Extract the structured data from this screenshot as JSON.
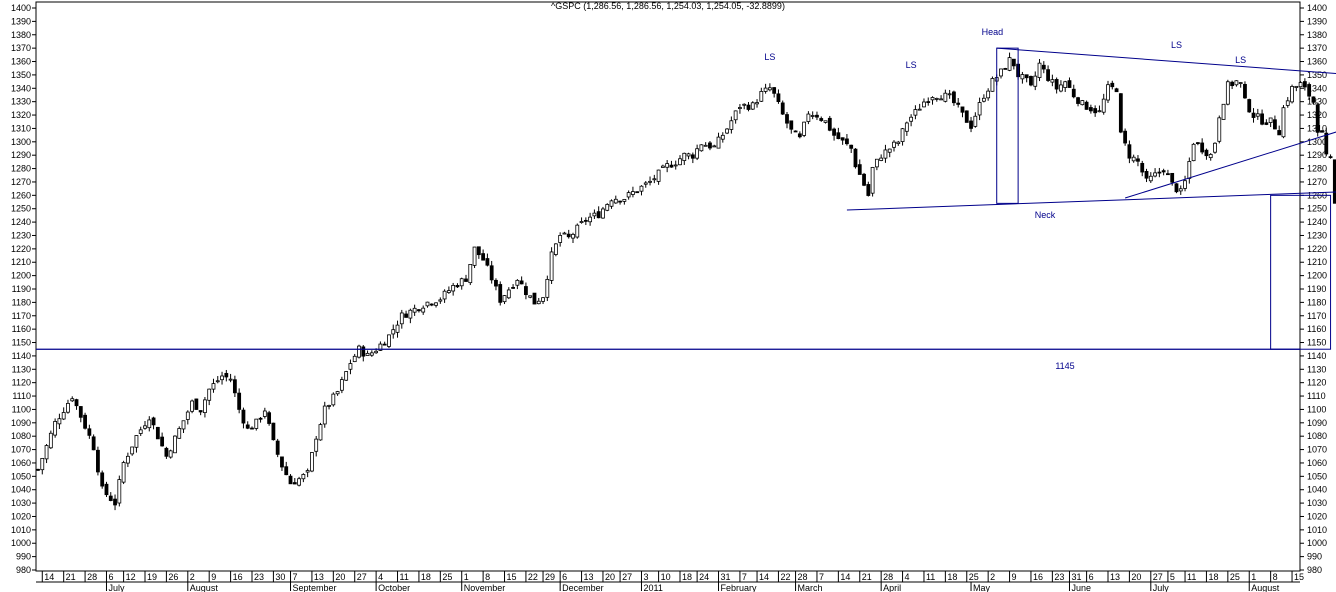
{
  "header": {
    "title": "^GSPC (1,286.56, 1,286.56, 1,254.03, 1,254.05, -32.8899)"
  },
  "chart_data": {
    "type": "candlestick",
    "title": "^GSPC (1,286.56, 1,286.56, 1,254.03, 1,254.05, -32.8899)",
    "ylim": [
      980,
      1400
    ],
    "y_ticks": [
      980,
      990,
      1000,
      1010,
      1020,
      1030,
      1040,
      1050,
      1060,
      1070,
      1080,
      1090,
      1100,
      1110,
      1120,
      1130,
      1140,
      1150,
      1160,
      1170,
      1180,
      1190,
      1200,
      1210,
      1220,
      1230,
      1240,
      1250,
      1260,
      1270,
      1280,
      1290,
      1300,
      1310,
      1320,
      1330,
      1340,
      1350,
      1360,
      1370,
      1380,
      1390,
      1400
    ],
    "x_day_ticks": [
      {
        "i": 1,
        "t": "14"
      },
      {
        "i": 6,
        "t": "21"
      },
      {
        "i": 11,
        "t": "28"
      },
      {
        "i": 16,
        "t": "6"
      },
      {
        "i": 20,
        "t": "12"
      },
      {
        "i": 25,
        "t": "19"
      },
      {
        "i": 30,
        "t": "26"
      },
      {
        "i": 35,
        "t": "2"
      },
      {
        "i": 40,
        "t": "9"
      },
      {
        "i": 45,
        "t": "16"
      },
      {
        "i": 50,
        "t": "23"
      },
      {
        "i": 55,
        "t": "30"
      },
      {
        "i": 59,
        "t": "7"
      },
      {
        "i": 64,
        "t": "13"
      },
      {
        "i": 69,
        "t": "20"
      },
      {
        "i": 74,
        "t": "27"
      },
      {
        "i": 79,
        "t": "4"
      },
      {
        "i": 84,
        "t": "11"
      },
      {
        "i": 89,
        "t": "18"
      },
      {
        "i": 94,
        "t": "25"
      },
      {
        "i": 99,
        "t": "1"
      },
      {
        "i": 104,
        "t": "8"
      },
      {
        "i": 109,
        "t": "15"
      },
      {
        "i": 114,
        "t": "22"
      },
      {
        "i": 118,
        "t": "29"
      },
      {
        "i": 122,
        "t": "6"
      },
      {
        "i": 127,
        "t": "13"
      },
      {
        "i": 132,
        "t": "20"
      },
      {
        "i": 136,
        "t": "27"
      },
      {
        "i": 141,
        "t": "3"
      },
      {
        "i": 145,
        "t": "10"
      },
      {
        "i": 150,
        "t": "18"
      },
      {
        "i": 154,
        "t": "24"
      },
      {
        "i": 159,
        "t": "31"
      },
      {
        "i": 164,
        "t": "7"
      },
      {
        "i": 168,
        "t": "14"
      },
      {
        "i": 173,
        "t": "22"
      },
      {
        "i": 177,
        "t": "28"
      },
      {
        "i": 182,
        "t": "7"
      },
      {
        "i": 187,
        "t": "14"
      },
      {
        "i": 192,
        "t": "21"
      },
      {
        "i": 197,
        "t": "28"
      },
      {
        "i": 202,
        "t": "4"
      },
      {
        "i": 207,
        "t": "11"
      },
      {
        "i": 212,
        "t": "18"
      },
      {
        "i": 217,
        "t": "25"
      },
      {
        "i": 222,
        "t": "2"
      },
      {
        "i": 227,
        "t": "9"
      },
      {
        "i": 232,
        "t": "16"
      },
      {
        "i": 237,
        "t": "23"
      },
      {
        "i": 241,
        "t": "31"
      },
      {
        "i": 245,
        "t": "6"
      },
      {
        "i": 250,
        "t": "13"
      },
      {
        "i": 255,
        "t": "20"
      },
      {
        "i": 260,
        "t": "27"
      },
      {
        "i": 264,
        "t": "5"
      },
      {
        "i": 268,
        "t": "11"
      },
      {
        "i": 273,
        "t": "18"
      },
      {
        "i": 278,
        "t": "25"
      },
      {
        "i": 283,
        "t": "1"
      },
      {
        "i": 288,
        "t": "8"
      },
      {
        "i": 293,
        "t": "15"
      }
    ],
    "x_month_labels": [
      {
        "i": 16,
        "t": "July"
      },
      {
        "i": 35,
        "t": "August"
      },
      {
        "i": 59,
        "t": "September"
      },
      {
        "i": 79,
        "t": "October"
      },
      {
        "i": 99,
        "t": "November"
      },
      {
        "i": 122,
        "t": "December"
      },
      {
        "i": 141,
        "t": "2011"
      },
      {
        "i": 159,
        "t": "February"
      },
      {
        "i": 177,
        "t": "March"
      },
      {
        "i": 197,
        "t": "April"
      },
      {
        "i": 218,
        "t": "May"
      },
      {
        "i": 241,
        "t": "June"
      },
      {
        "i": 260,
        "t": "July"
      },
      {
        "i": 283,
        "t": "August"
      }
    ],
    "close_path": [
      [
        0,
        1055
      ],
      [
        4,
        1090
      ],
      [
        8,
        1110
      ],
      [
        10,
        1095
      ],
      [
        12,
        1080
      ],
      [
        13,
        1072
      ],
      [
        15,
        1040
      ],
      [
        18,
        1030
      ],
      [
        20,
        1060
      ],
      [
        23,
        1080
      ],
      [
        26,
        1095
      ],
      [
        28,
        1080
      ],
      [
        30,
        1065
      ],
      [
        33,
        1085
      ],
      [
        36,
        1105
      ],
      [
        38,
        1100
      ],
      [
        40,
        1115
      ],
      [
        43,
        1125
      ],
      [
        45,
        1123
      ],
      [
        47,
        1100
      ],
      [
        49,
        1085
      ],
      [
        51,
        1090
      ],
      [
        53,
        1100
      ],
      [
        55,
        1075
      ],
      [
        57,
        1058
      ],
      [
        59,
        1045
      ],
      [
        61,
        1048
      ],
      [
        63,
        1052
      ],
      [
        65,
        1080
      ],
      [
        67,
        1100
      ],
      [
        70,
        1113
      ],
      [
        73,
        1135
      ],
      [
        75,
        1145
      ],
      [
        77,
        1140
      ],
      [
        79,
        1145
      ],
      [
        82,
        1155
      ],
      [
        85,
        1170
      ],
      [
        88,
        1175
      ],
      [
        91,
        1180
      ],
      [
        94,
        1183
      ],
      [
        97,
        1192
      ],
      [
        100,
        1198
      ],
      [
        102,
        1220
      ],
      [
        104,
        1212
      ],
      [
        106,
        1198
      ],
      [
        108,
        1182
      ],
      [
        110,
        1190
      ],
      [
        112,
        1198
      ],
      [
        114,
        1188
      ],
      [
        116,
        1180
      ],
      [
        118,
        1185
      ],
      [
        120,
        1215
      ],
      [
        122,
        1230
      ],
      [
        124,
        1228
      ],
      [
        126,
        1235
      ],
      [
        128,
        1242
      ],
      [
        131,
        1246
      ],
      [
        134,
        1258
      ],
      [
        137,
        1258
      ],
      [
        140,
        1264
      ],
      [
        143,
        1270
      ],
      [
        145,
        1276
      ],
      [
        147,
        1282
      ],
      [
        149,
        1285
      ],
      [
        151,
        1290
      ],
      [
        153,
        1290
      ],
      [
        155,
        1299
      ],
      [
        158,
        1296
      ],
      [
        161,
        1310
      ],
      [
        164,
        1327
      ],
      [
        167,
        1327
      ],
      [
        169,
        1336
      ],
      [
        171,
        1340
      ],
      [
        172,
        1335
      ],
      [
        174,
        1320
      ],
      [
        176,
        1308
      ],
      [
        178,
        1302
      ],
      [
        180,
        1322
      ],
      [
        182,
        1320
      ],
      [
        184,
        1315
      ],
      [
        186,
        1305
      ],
      [
        188,
        1300
      ],
      [
        190,
        1295
      ],
      [
        191,
        1283
      ],
      [
        193,
        1268
      ],
      [
        194,
        1260
      ],
      [
        195,
        1280
      ],
      [
        197,
        1290
      ],
      [
        199,
        1295
      ],
      [
        201,
        1300
      ],
      [
        203,
        1315
      ],
      [
        205,
        1322
      ],
      [
        207,
        1330
      ],
      [
        209,
        1335
      ],
      [
        211,
        1335
      ],
      [
        213,
        1333
      ],
      [
        215,
        1325
      ],
      [
        216,
        1320
      ],
      [
        218,
        1312
      ],
      [
        219,
        1320
      ],
      [
        221,
        1335
      ],
      [
        223,
        1345
      ],
      [
        225,
        1352
      ],
      [
        227,
        1361
      ],
      [
        228,
        1358
      ],
      [
        229,
        1350
      ],
      [
        231,
        1345
      ],
      [
        232,
        1340
      ],
      [
        234,
        1358
      ],
      [
        236,
        1348
      ],
      [
        238,
        1340
      ],
      [
        240,
        1345
      ],
      [
        242,
        1335
      ],
      [
        244,
        1328
      ],
      [
        246,
        1325
      ],
      [
        248,
        1322
      ],
      [
        250,
        1340
      ],
      [
        252,
        1340
      ],
      [
        253,
        1305
      ],
      [
        255,
        1290
      ],
      [
        257,
        1285
      ],
      [
        259,
        1270
      ],
      [
        261,
        1275
      ],
      [
        263,
        1280
      ],
      [
        265,
        1268
      ],
      [
        267,
        1262
      ],
      [
        268,
        1270
      ],
      [
        270,
        1300
      ],
      [
        272,
        1295
      ],
      [
        274,
        1290
      ],
      [
        275,
        1300
      ],
      [
        276,
        1320
      ],
      [
        278,
        1342
      ],
      [
        280,
        1345
      ],
      [
        281,
        1343
      ],
      [
        282,
        1330
      ],
      [
        284,
        1320
      ],
      [
        286,
        1316
      ],
      [
        288,
        1315
      ],
      [
        290,
        1308
      ],
      [
        291,
        1325
      ],
      [
        293,
        1340
      ],
      [
        295,
        1343
      ],
      [
        297,
        1335
      ],
      [
        298,
        1330
      ],
      [
        299,
        1310
      ],
      [
        300,
        1305
      ],
      [
        301,
        1288
      ],
      [
        302,
        1286
      ],
      [
        303,
        1254
      ]
    ],
    "last_bar": {
      "open": 1286.56,
      "high": 1286.56,
      "low": 1254.03,
      "close": 1254.05,
      "change": -32.8899
    },
    "annotations": {
      "support_level": {
        "value": 1145,
        "label": "1145"
      },
      "neckline": {
        "from": [
          189,
          1249
        ],
        "to": [
          316,
          1264
        ],
        "label": "Neck"
      },
      "head_box": {
        "x0": 224,
        "x1": 229,
        "y0": 1254,
        "y1": 1370,
        "label": "Head"
      },
      "upper_trend": {
        "from": [
          224,
          1370
        ],
        "to": [
          316,
          1348
        ]
      },
      "rising_trend": {
        "from": [
          254,
          1258
        ],
        "to": [
          316,
          1320
        ]
      },
      "target_box": {
        "x0": 288,
        "x1": 302,
        "y0": 1145,
        "y1": 1260
      },
      "shoulder_labels": [
        {
          "x": 171,
          "y": 1361,
          "t": "LS"
        },
        {
          "x": 204,
          "y": 1355,
          "t": "LS"
        },
        {
          "x": 266,
          "y": 1370,
          "t": "LS"
        },
        {
          "x": 281,
          "y": 1359,
          "t": "LS"
        }
      ],
      "head_label": {
        "x": 223,
        "y": 1380,
        "t": "Head"
      }
    }
  }
}
